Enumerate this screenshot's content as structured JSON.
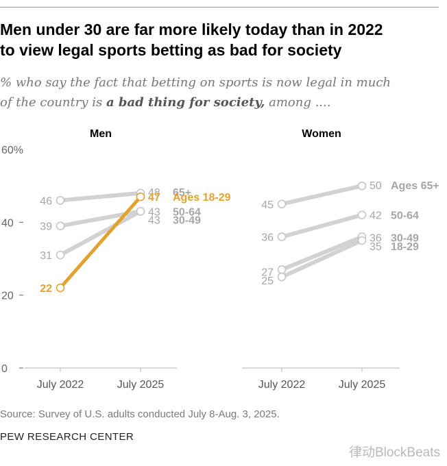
{
  "title_lines": [
    "Men under 30 are far more likely today than in 2022",
    "to view legal sports betting as bad for society"
  ],
  "subtitle": {
    "line1": "% who say the fact that betting on sports is now legal in much",
    "line2_pre": "of the country is ",
    "line2_bold": "a bad thing for society,",
    "line2_post": " among ...."
  },
  "source": "Source: Survey of U.S. adults conducted July 8-Aug. 3, 2025.",
  "organization": "PEW RESEARCH CENTER",
  "watermark": "律动BlockBeats",
  "colors": {
    "highlight": "#e3a22f",
    "muted_line": "#d2d2d2",
    "muted_label": "#a6a6a6",
    "axis": "#b3b3b3"
  },
  "chart_data": [
    {
      "type": "line",
      "title": "Men",
      "x": [
        "July 2022",
        "July 2025"
      ],
      "ylim": [
        0,
        60
      ],
      "yticks": [
        "0",
        "20",
        "40",
        "60%"
      ],
      "series": [
        {
          "name": "65+",
          "values": [
            46,
            48
          ],
          "highlight": false
        },
        {
          "name": "Ages 18-29",
          "values": [
            22,
            47
          ],
          "highlight": true
        },
        {
          "name": "50-64",
          "values": [
            39,
            43
          ],
          "highlight": false
        },
        {
          "name": "30-49",
          "values": [
            31,
            43
          ],
          "highlight": false
        }
      ]
    },
    {
      "type": "line",
      "title": "Women",
      "x": [
        "July 2022",
        "July 2025"
      ],
      "ylim": [
        0,
        60
      ],
      "series": [
        {
          "name": "Ages 65+",
          "values": [
            45,
            50
          ],
          "highlight": false
        },
        {
          "name": "50-64",
          "values": [
            36,
            42
          ],
          "highlight": false
        },
        {
          "name": "30-49",
          "values": [
            27,
            36
          ],
          "highlight": false
        },
        {
          "name": "18-29",
          "values": [
            25,
            35
          ],
          "highlight": false
        }
      ]
    }
  ]
}
